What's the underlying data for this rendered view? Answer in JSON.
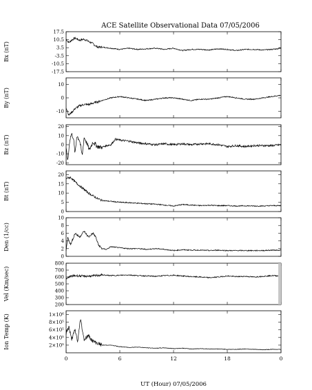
{
  "title": "ACE Satellite Observational Data   07/05/2006",
  "xlabel": "UT (Hour)   07/05/2006",
  "colors": {
    "line": "#000000",
    "data_gap": "#c8c8c8"
  },
  "chart_data": [
    {
      "type": "line",
      "name": "Bx",
      "ylabel": "Bx (nT)",
      "ylim": [
        -17.5,
        17.5
      ],
      "yticks": [
        "17.5",
        "10.5",
        "3.5",
        "-3.5",
        "-10.5",
        "-17.5"
      ],
      "yticks_v": [
        17.5,
        10.5,
        3.5,
        -3.5,
        -10.5,
        -17.5
      ],
      "x": [
        0,
        0.3,
        0.6,
        1,
        1.5,
        2,
        2.5,
        3,
        3.3,
        3.6,
        4,
        5,
        6,
        7,
        8,
        9,
        10,
        11,
        12,
        13,
        14,
        15,
        16,
        17,
        18,
        19,
        20,
        21,
        22,
        23,
        24
      ],
      "values": [
        11,
        8,
        10,
        12,
        10,
        11,
        9,
        7,
        5,
        4,
        4,
        3,
        2,
        3,
        2,
        2.5,
        3,
        2,
        3,
        1,
        2,
        2,
        1.5,
        2.5,
        2,
        1,
        2,
        2,
        1.5,
        2,
        3
      ]
    },
    {
      "type": "line",
      "name": "By",
      "ylabel": "By (nT)",
      "ylim": [
        -15,
        15
      ],
      "yticks": [
        "10",
        "0",
        "-10"
      ],
      "yticks_v": [
        10,
        0,
        -10
      ],
      "x": [
        0,
        0.3,
        0.6,
        1,
        1.5,
        2,
        2.5,
        3,
        4,
        5,
        6,
        7,
        8,
        9,
        10,
        11,
        12,
        13,
        14,
        15,
        16,
        17,
        18,
        19,
        20,
        21,
        22,
        23,
        24
      ],
      "values": [
        -7,
        -13,
        -11,
        -8,
        -6,
        -5,
        -5,
        -4,
        -2,
        0,
        1,
        0,
        -1,
        -2,
        -1,
        0,
        0,
        -1,
        -2,
        -1,
        -1,
        0,
        1,
        0,
        -1,
        -1,
        0,
        1,
        2
      ]
    },
    {
      "type": "line",
      "name": "Bz",
      "ylabel": "Bz (nT)",
      "ylim": [
        -22,
        22
      ],
      "yticks": [
        "20",
        "10",
        "0",
        "-10",
        "-20"
      ],
      "yticks_v": [
        20,
        10,
        0,
        -10,
        -20
      ],
      "x": [
        0,
        0.2,
        0.4,
        0.6,
        0.8,
        1,
        1.2,
        1.5,
        1.8,
        2,
        2.3,
        2.6,
        3,
        3.5,
        4,
        4.5,
        5,
        5.5,
        6,
        7,
        8,
        9,
        10,
        11,
        12,
        13,
        14,
        15,
        16,
        17,
        18,
        19,
        20,
        21,
        22,
        23,
        24
      ],
      "values": [
        -5,
        -18,
        5,
        12,
        8,
        -10,
        10,
        5,
        -12,
        8,
        2,
        -6,
        3,
        -2,
        -3,
        -1,
        0,
        6,
        5,
        4,
        2,
        1,
        0,
        1,
        0,
        1,
        0,
        1,
        1,
        0,
        -2,
        -1,
        -2,
        -1,
        -1,
        -1,
        0
      ]
    },
    {
      "type": "line",
      "name": "Bt",
      "ylabel": "Bt (nT)",
      "ylim": [
        0,
        22
      ],
      "yticks": [
        "20",
        "15",
        "10",
        "5",
        "0"
      ],
      "yticks_v": [
        20,
        15,
        10,
        5,
        0
      ],
      "x": [
        0,
        0.5,
        1,
        1.5,
        2,
        2.5,
        3,
        3.5,
        4,
        5,
        6,
        7,
        8,
        9,
        10,
        11,
        12,
        13,
        14,
        15,
        16,
        17,
        18,
        19,
        20,
        21,
        22,
        23,
        24
      ],
      "values": [
        18,
        18.5,
        16,
        14,
        12,
        10,
        8.5,
        7,
        6,
        5.5,
        5,
        4.8,
        4.5,
        4.2,
        4,
        3.5,
        3,
        3.8,
        3.5,
        3.2,
        3.4,
        3.2,
        3.2,
        3,
        3.1,
        3,
        3,
        3.2,
        3.2
      ]
    },
    {
      "type": "line",
      "name": "Den",
      "ylabel": "Den (1/cc)",
      "ylim": [
        0,
        10
      ],
      "yticks": [
        "10",
        "8",
        "6",
        "4",
        "2",
        "0"
      ],
      "yticks_v": [
        10,
        8,
        6,
        4,
        2,
        0
      ],
      "x": [
        0,
        0.2,
        0.5,
        1,
        1.5,
        2,
        2.5,
        3,
        3.3,
        3.6,
        4,
        4.5,
        5,
        6,
        7,
        8,
        9,
        10,
        11,
        12,
        13,
        14,
        15,
        16,
        17,
        18,
        19,
        20,
        21,
        22,
        23,
        24
      ],
      "values": [
        1.5,
        5,
        3,
        6,
        5,
        6.5,
        5,
        6,
        5,
        3,
        2,
        1.8,
        2.5,
        2.2,
        2,
        2,
        1.8,
        2,
        1.8,
        1.5,
        1.7,
        1.6,
        1.6,
        1.5,
        1.6,
        1.5,
        1.5,
        1.5,
        1.5,
        1.5,
        1.6,
        1.6
      ]
    },
    {
      "type": "line",
      "name": "Vel",
      "ylabel": "Vel (Km/sec)",
      "ylim": [
        200,
        800
      ],
      "yticks": [
        "800",
        "700",
        "600",
        "500",
        "400",
        "300",
        "200"
      ],
      "yticks_v": [
        800,
        700,
        600,
        500,
        400,
        300,
        200
      ],
      "x": [
        0,
        0.3,
        0.6,
        1,
        2,
        3,
        4,
        5,
        6,
        7,
        8,
        9,
        10,
        11,
        12,
        13,
        14,
        15,
        16,
        17,
        18,
        19,
        20,
        21,
        22,
        23,
        24
      ],
      "values": [
        560,
        600,
        610,
        620,
        610,
        615,
        630,
        620,
        625,
        630,
        620,
        615,
        610,
        620,
        625,
        615,
        605,
        600,
        590,
        600,
        615,
        605,
        610,
        600,
        610,
        620,
        615
      ]
    },
    {
      "type": "line",
      "name": "Ion Temp",
      "ylabel": "Ion Temp (K)",
      "ylim": [
        0,
        1100000
      ],
      "yticks": [
        "1×10⁶",
        "8×10⁵",
        "6×10⁵",
        "4×10⁵",
        "2×10⁵"
      ],
      "yticks_v": [
        1000000,
        800000,
        600000,
        400000,
        200000
      ],
      "x": [
        0,
        0.3,
        0.6,
        1,
        1.3,
        1.6,
        2,
        2.5,
        3,
        3.5,
        4,
        5,
        6,
        7,
        8,
        9,
        10,
        11,
        12,
        13,
        14,
        15,
        16,
        17,
        18,
        19,
        20,
        21,
        22,
        23,
        24
      ],
      "values": [
        500000,
        700000,
        350000,
        600000,
        280000,
        900000,
        350000,
        450000,
        300000,
        250000,
        200000,
        200000,
        160000,
        140000,
        150000,
        130000,
        120000,
        130000,
        110000,
        120000,
        100000,
        110000,
        100000,
        100000,
        90000,
        90000,
        100000,
        90000,
        80000,
        90000,
        90000
      ]
    }
  ],
  "xaxis": {
    "xlim": [
      0,
      24
    ],
    "ticks": [
      "0",
      "6",
      "12",
      "18",
      "0"
    ],
    "ticks_v": [
      0,
      6,
      12,
      18,
      24
    ]
  }
}
